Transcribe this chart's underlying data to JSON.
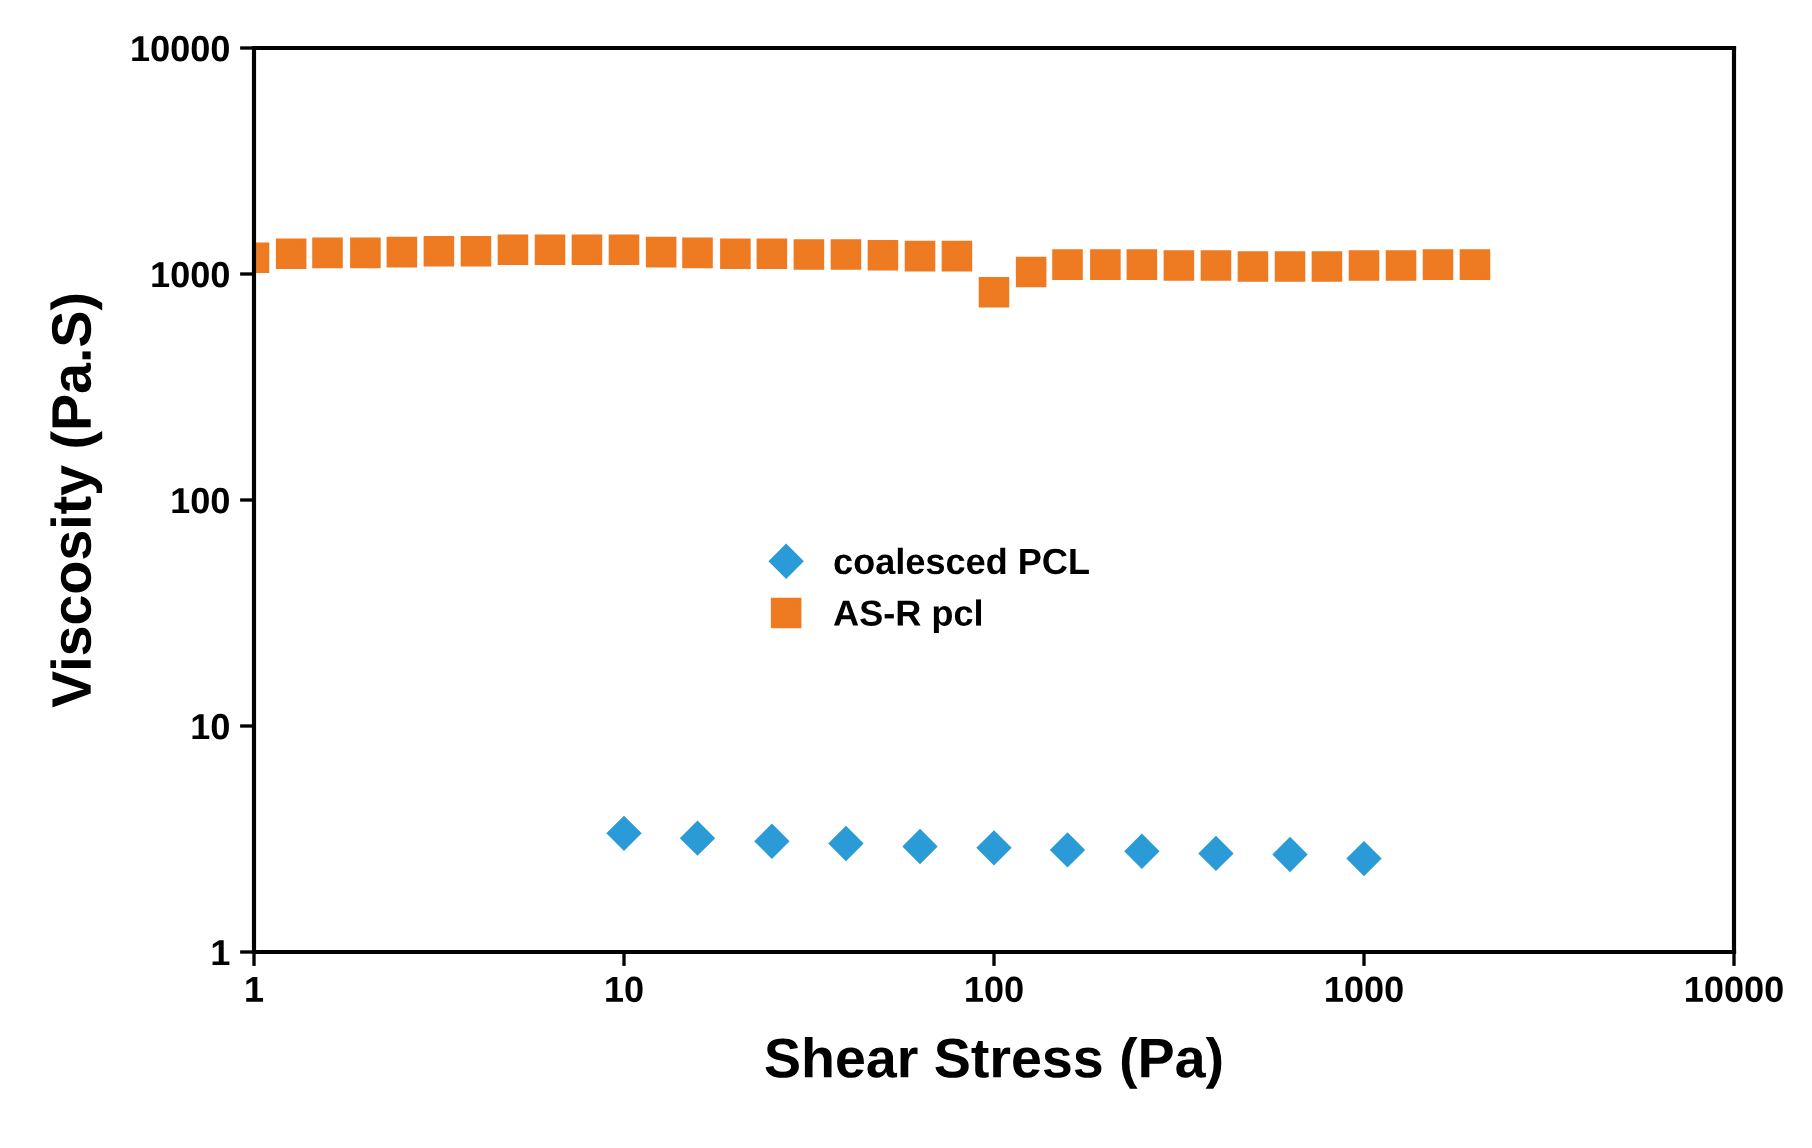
{
  "chart_data": {
    "type": "scatter",
    "xlabel": "Shear Stress (Pa)",
    "ylabel": "Viscosity (Pa.S)",
    "log": "xy",
    "xlim": [
      1,
      10000
    ],
    "ylim": [
      1,
      10000
    ],
    "xticks": [
      1,
      10,
      100,
      1000,
      10000
    ],
    "yticks": [
      1,
      10,
      100,
      1000,
      10000
    ],
    "grid": false,
    "legend": "center",
    "series": [
      {
        "name": "coalesced PCL",
        "color": "#2a9bd6",
        "marker": "diamond",
        "x": [
          10,
          15.8,
          25.1,
          39.8,
          63.1,
          100,
          158,
          251,
          398,
          631,
          1000
        ],
        "values": [
          3.35,
          3.19,
          3.09,
          3.02,
          2.93,
          2.89,
          2.83,
          2.79,
          2.73,
          2.7,
          2.59
        ]
      },
      {
        "name": "AS-R pcl",
        "color": "#ee7a21",
        "marker": "square",
        "x": [
          1,
          1.26,
          1.58,
          2,
          2.51,
          3.16,
          3.98,
          5.01,
          6.31,
          7.94,
          10,
          12.6,
          15.8,
          20,
          25.1,
          31.6,
          39.8,
          50.1,
          63.1,
          79.4,
          100,
          126,
          158,
          200,
          251,
          316,
          398,
          501,
          631,
          794,
          1000,
          1259,
          1585,
          1995
        ],
        "values": [
          1180,
          1230,
          1240,
          1240,
          1250,
          1260,
          1260,
          1280,
          1280,
          1280,
          1280,
          1250,
          1240,
          1230,
          1230,
          1220,
          1220,
          1210,
          1200,
          1200,
          830,
          1020,
          1100,
          1100,
          1100,
          1090,
          1090,
          1080,
          1080,
          1080,
          1090,
          1090,
          1100,
          1100
        ]
      }
    ]
  }
}
